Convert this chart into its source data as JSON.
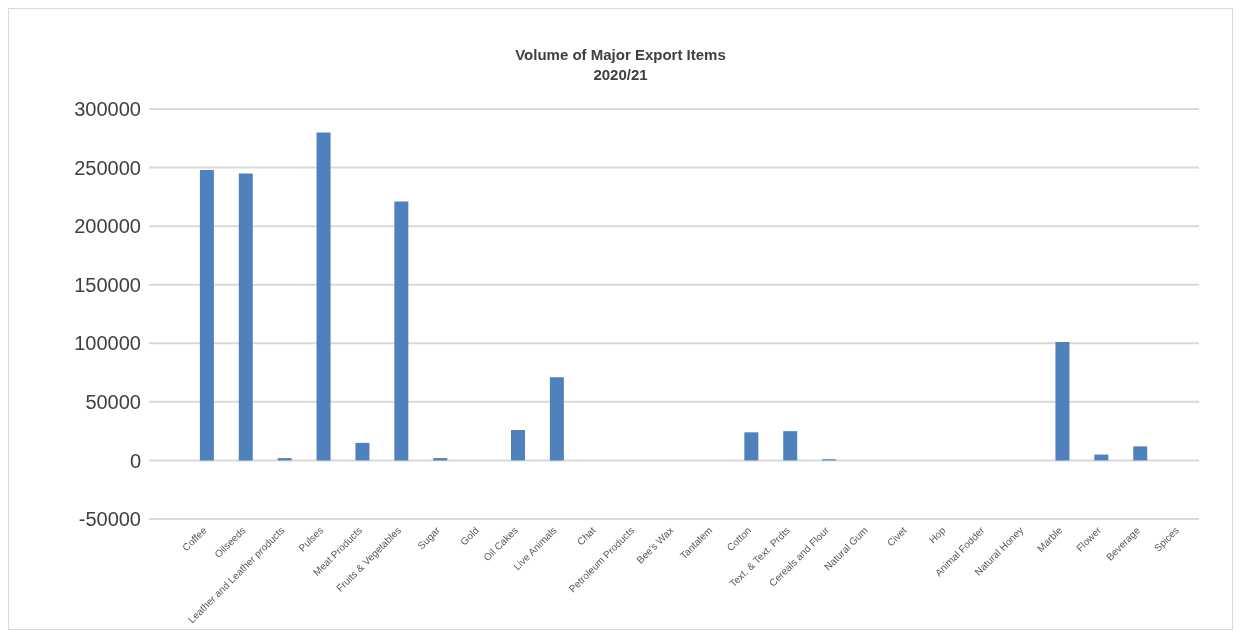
{
  "chart_data": {
    "type": "bar",
    "title": "Volume of Major Export Items\n2020/21",
    "categories": [
      null,
      "Coffee",
      "Oilseeds",
      "Leather and Leather products",
      "Pulses",
      "Meat Products",
      "Fruits & Vegetables",
      "Sugar",
      "Gold",
      "Oil Cakes",
      "Live Animals",
      "Chat",
      "Petroleum Products",
      "Bee's Wax",
      "Tantalem",
      "Cotton",
      "Text. & Text. Prdts",
      "Cereals and Flour",
      "Natural Gum",
      "Civet",
      "Hop",
      "Animal Fodder",
      "Natural Honey",
      "Marble",
      "Flower",
      "Beverage",
      "Spices"
    ],
    "values": [
      0,
      248000,
      245000,
      2000,
      280000,
      15000,
      221000,
      2000,
      0,
      26000,
      71000,
      0,
      0,
      0,
      0,
      24000,
      25000,
      1000,
      0,
      0,
      0,
      0,
      0,
      101000,
      5000,
      12000,
      null
    ],
    "color": "#4f81bd",
    "ylim": [
      -50000,
      300000
    ],
    "yticks": [
      -50000,
      0,
      50000,
      100000,
      150000,
      200000,
      250000,
      300000
    ],
    "grid": "y"
  }
}
